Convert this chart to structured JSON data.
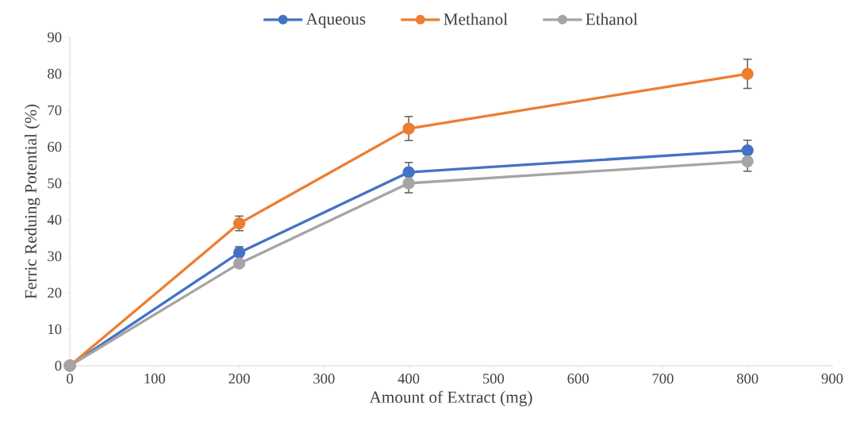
{
  "chart_data": {
    "type": "line",
    "xlabel": "Amount of Extract (mg)",
    "ylabel": "Ferric Reduing Potential (%)",
    "x": [
      0,
      200,
      400,
      800
    ],
    "series": [
      {
        "name": "Aqueous",
        "color": "#4472c4",
        "values": [
          0,
          31,
          53,
          59
        ],
        "errors": [
          null,
          [
            31,
            32.6
          ],
          [
            53,
            55.7
          ],
          [
            59,
            61.8
          ]
        ]
      },
      {
        "name": "Methanol",
        "color": "#ed7d31",
        "values": [
          0,
          39,
          65,
          80
        ],
        "errors": [
          null,
          2,
          3.3,
          4
        ]
      },
      {
        "name": "Ethanol",
        "color": "#a5a5a5",
        "values": [
          0,
          28,
          50,
          56
        ],
        "errors": [
          null,
          null,
          [
            47.4,
            50
          ],
          [
            53.3,
            56
          ]
        ]
      }
    ],
    "xlim": [
      0,
      900
    ],
    "xticks": [
      0,
      100,
      200,
      300,
      400,
      500,
      600,
      700,
      800,
      900
    ],
    "ylim": [
      0,
      90
    ],
    "yticks": [
      0,
      10,
      20,
      30,
      40,
      50,
      60,
      70,
      80,
      90
    ],
    "legend": "top",
    "marker": "circle",
    "grid": false
  }
}
